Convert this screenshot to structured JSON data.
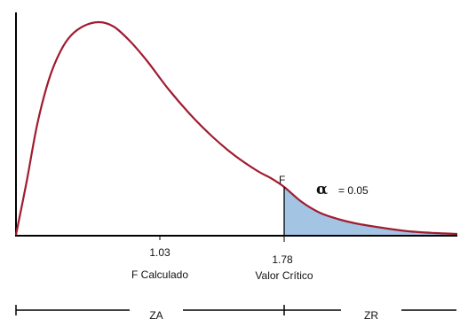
{
  "chart_data": {
    "type": "area",
    "distribution": "F",
    "f_calculado": {
      "value": 1.03,
      "label": "F Calculado"
    },
    "valor_critico": {
      "value": 1.78,
      "label": "Valor Crítico"
    },
    "curve_letter": "F",
    "alpha": {
      "symbol": "α",
      "text": "= 0.05"
    },
    "regions": [
      {
        "label": "ZA"
      },
      {
        "label": "ZR"
      }
    ]
  },
  "colors": {
    "curve": "#a01c30",
    "rejection_fill": "#a3c4e3",
    "axis": "#000000"
  }
}
